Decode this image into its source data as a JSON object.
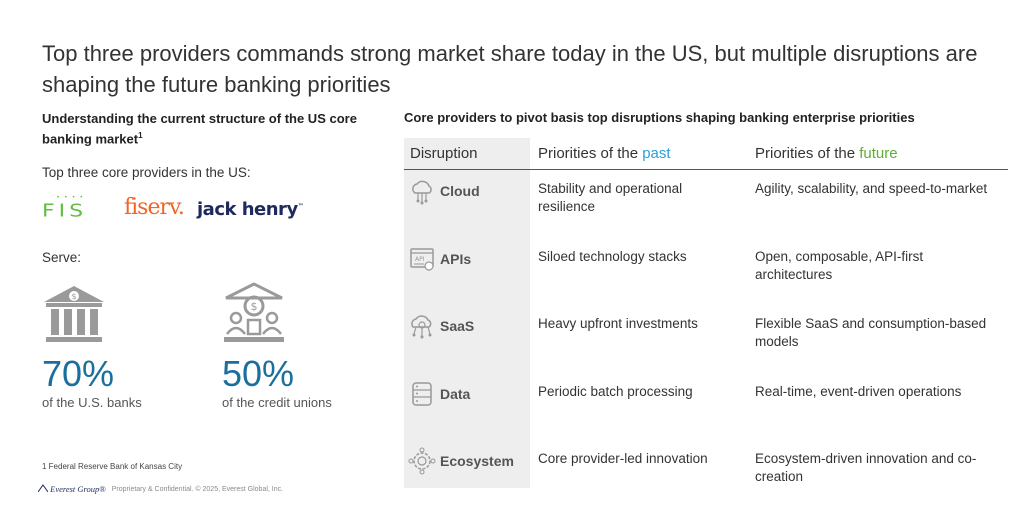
{
  "title": "Top three providers commands strong market share today in the US, but multiple disruptions are shaping the future banking priorities",
  "left": {
    "heading": "Understanding the current structure of the US core banking market",
    "heading_sup": "1",
    "top_three_label": "Top three core providers in the US:",
    "logos": {
      "fis": "FIS",
      "fiserv": "fiserv.",
      "jack_henry": "jack henry",
      "jack_henry_mark": "™"
    },
    "serve_label": "Serve:",
    "stats": [
      {
        "value": "70%",
        "desc": "of the U.S. banks",
        "icon": "bank-building-icon"
      },
      {
        "value": "50%",
        "desc": "of the credit unions",
        "icon": "credit-union-icon"
      }
    ],
    "footnote": "1 Federal Reserve Bank of Kansas City",
    "footer_brand": "Everest Group®",
    "footer_text": "Proprietary & Confidential. © 2025, Everest Global, Inc."
  },
  "right": {
    "heading": "Core providers to pivot basis top disruptions shaping banking enterprise priorities",
    "headers": {
      "disruption": "Disruption",
      "past_prefix": "Priorities of the ",
      "past_highlight": "past",
      "future_prefix": "Priorities of the ",
      "future_highlight": "future"
    },
    "rows": [
      {
        "label": "Cloud",
        "icon": "cloud-icon",
        "past": "Stability and operational resilience",
        "future": "Agility, scalability, and speed-to-market"
      },
      {
        "label": "APIs",
        "icon": "api-icon",
        "past": "Siloed technology stacks",
        "future": "Open, composable, API-first architectures"
      },
      {
        "label": "SaaS",
        "icon": "saas-cloud-gear-icon",
        "past": "Heavy upfront investments",
        "future": "Flexible SaaS and consumption-based models"
      },
      {
        "label": "Data",
        "icon": "database-icon",
        "past": "Periodic batch processing",
        "future": "Real-time, event-driven operations"
      },
      {
        "label": "Ecosystem",
        "icon": "ecosystem-gear-icon",
        "past": "Core provider-led innovation",
        "future": "Ecosystem-driven innovation and co-creation"
      }
    ],
    "colors": {
      "past": "#2a9fd8",
      "future": "#5fae3a",
      "stat": "#1b6f9c"
    }
  }
}
